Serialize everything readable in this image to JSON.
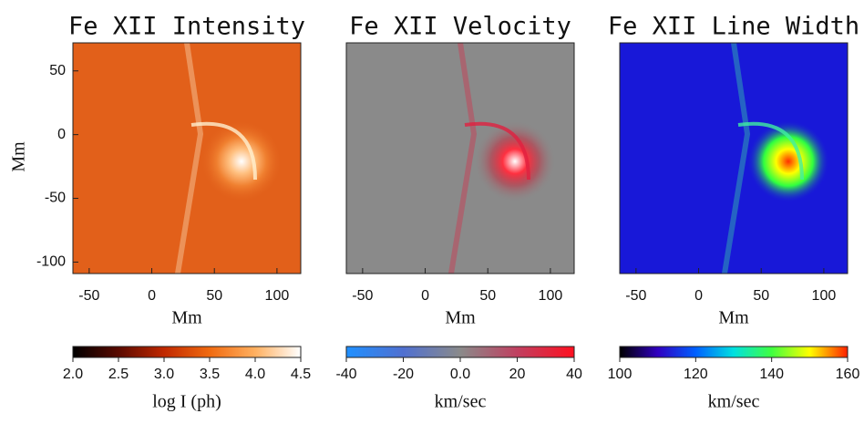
{
  "chart_data": [
    {
      "type": "image",
      "title": "Fe XII Intensity",
      "xlabel": "Mm",
      "ylabel": "Mm",
      "xlim": [
        -63,
        119
      ],
      "xticks": [
        -50,
        0,
        50,
        100
      ],
      "ylim": [
        -109,
        72
      ],
      "yticks": [
        50,
        0,
        -50,
        -100
      ],
      "colorbar": {
        "lim": [
          2.0,
          4.5
        ],
        "ticks": [
          {
            "value": 2.0,
            "label": "2.0"
          },
          2.5,
          {
            "value": 3.0,
            "label": "3.0"
          },
          3.5,
          {
            "value": 4.0,
            "label": "4.0"
          },
          4.5
        ],
        "label": "log I (ph)",
        "colors": [
          "#000000",
          "#5a0a00",
          "#c02800",
          "#f06a10",
          "#ffb060",
          "#ffffff"
        ]
      }
    },
    {
      "type": "image",
      "title": "Fe XII Velocity",
      "xlabel": "Mm",
      "xlim": [
        -63,
        119
      ],
      "xticks": [
        -50,
        0,
        50,
        100
      ],
      "colorbar": {
        "lim": [
          -40,
          40
        ],
        "ticks": [
          -40,
          -20,
          {
            "value": 0,
            "label": "0.0"
          },
          20,
          40
        ],
        "label": "km/sec",
        "colors": [
          "#2090ff",
          "#5070d0",
          "#8a8a8a",
          "#c04060",
          "#ff1020"
        ]
      }
    },
    {
      "type": "image",
      "title": "Fe XII Line Width",
      "xlabel": "Mm",
      "xlim": [
        -63,
        119
      ],
      "xticks": [
        -50,
        0,
        50,
        100
      ],
      "colorbar": {
        "lim": [
          100,
          160
        ],
        "ticks": [
          100,
          120,
          140,
          160
        ],
        "label": "km/sec",
        "colors": [
          "#000000",
          "#3000c0",
          "#0060ff",
          "#00e0e0",
          "#40ff40",
          "#ffff00",
          "#ff2000"
        ]
      }
    }
  ]
}
